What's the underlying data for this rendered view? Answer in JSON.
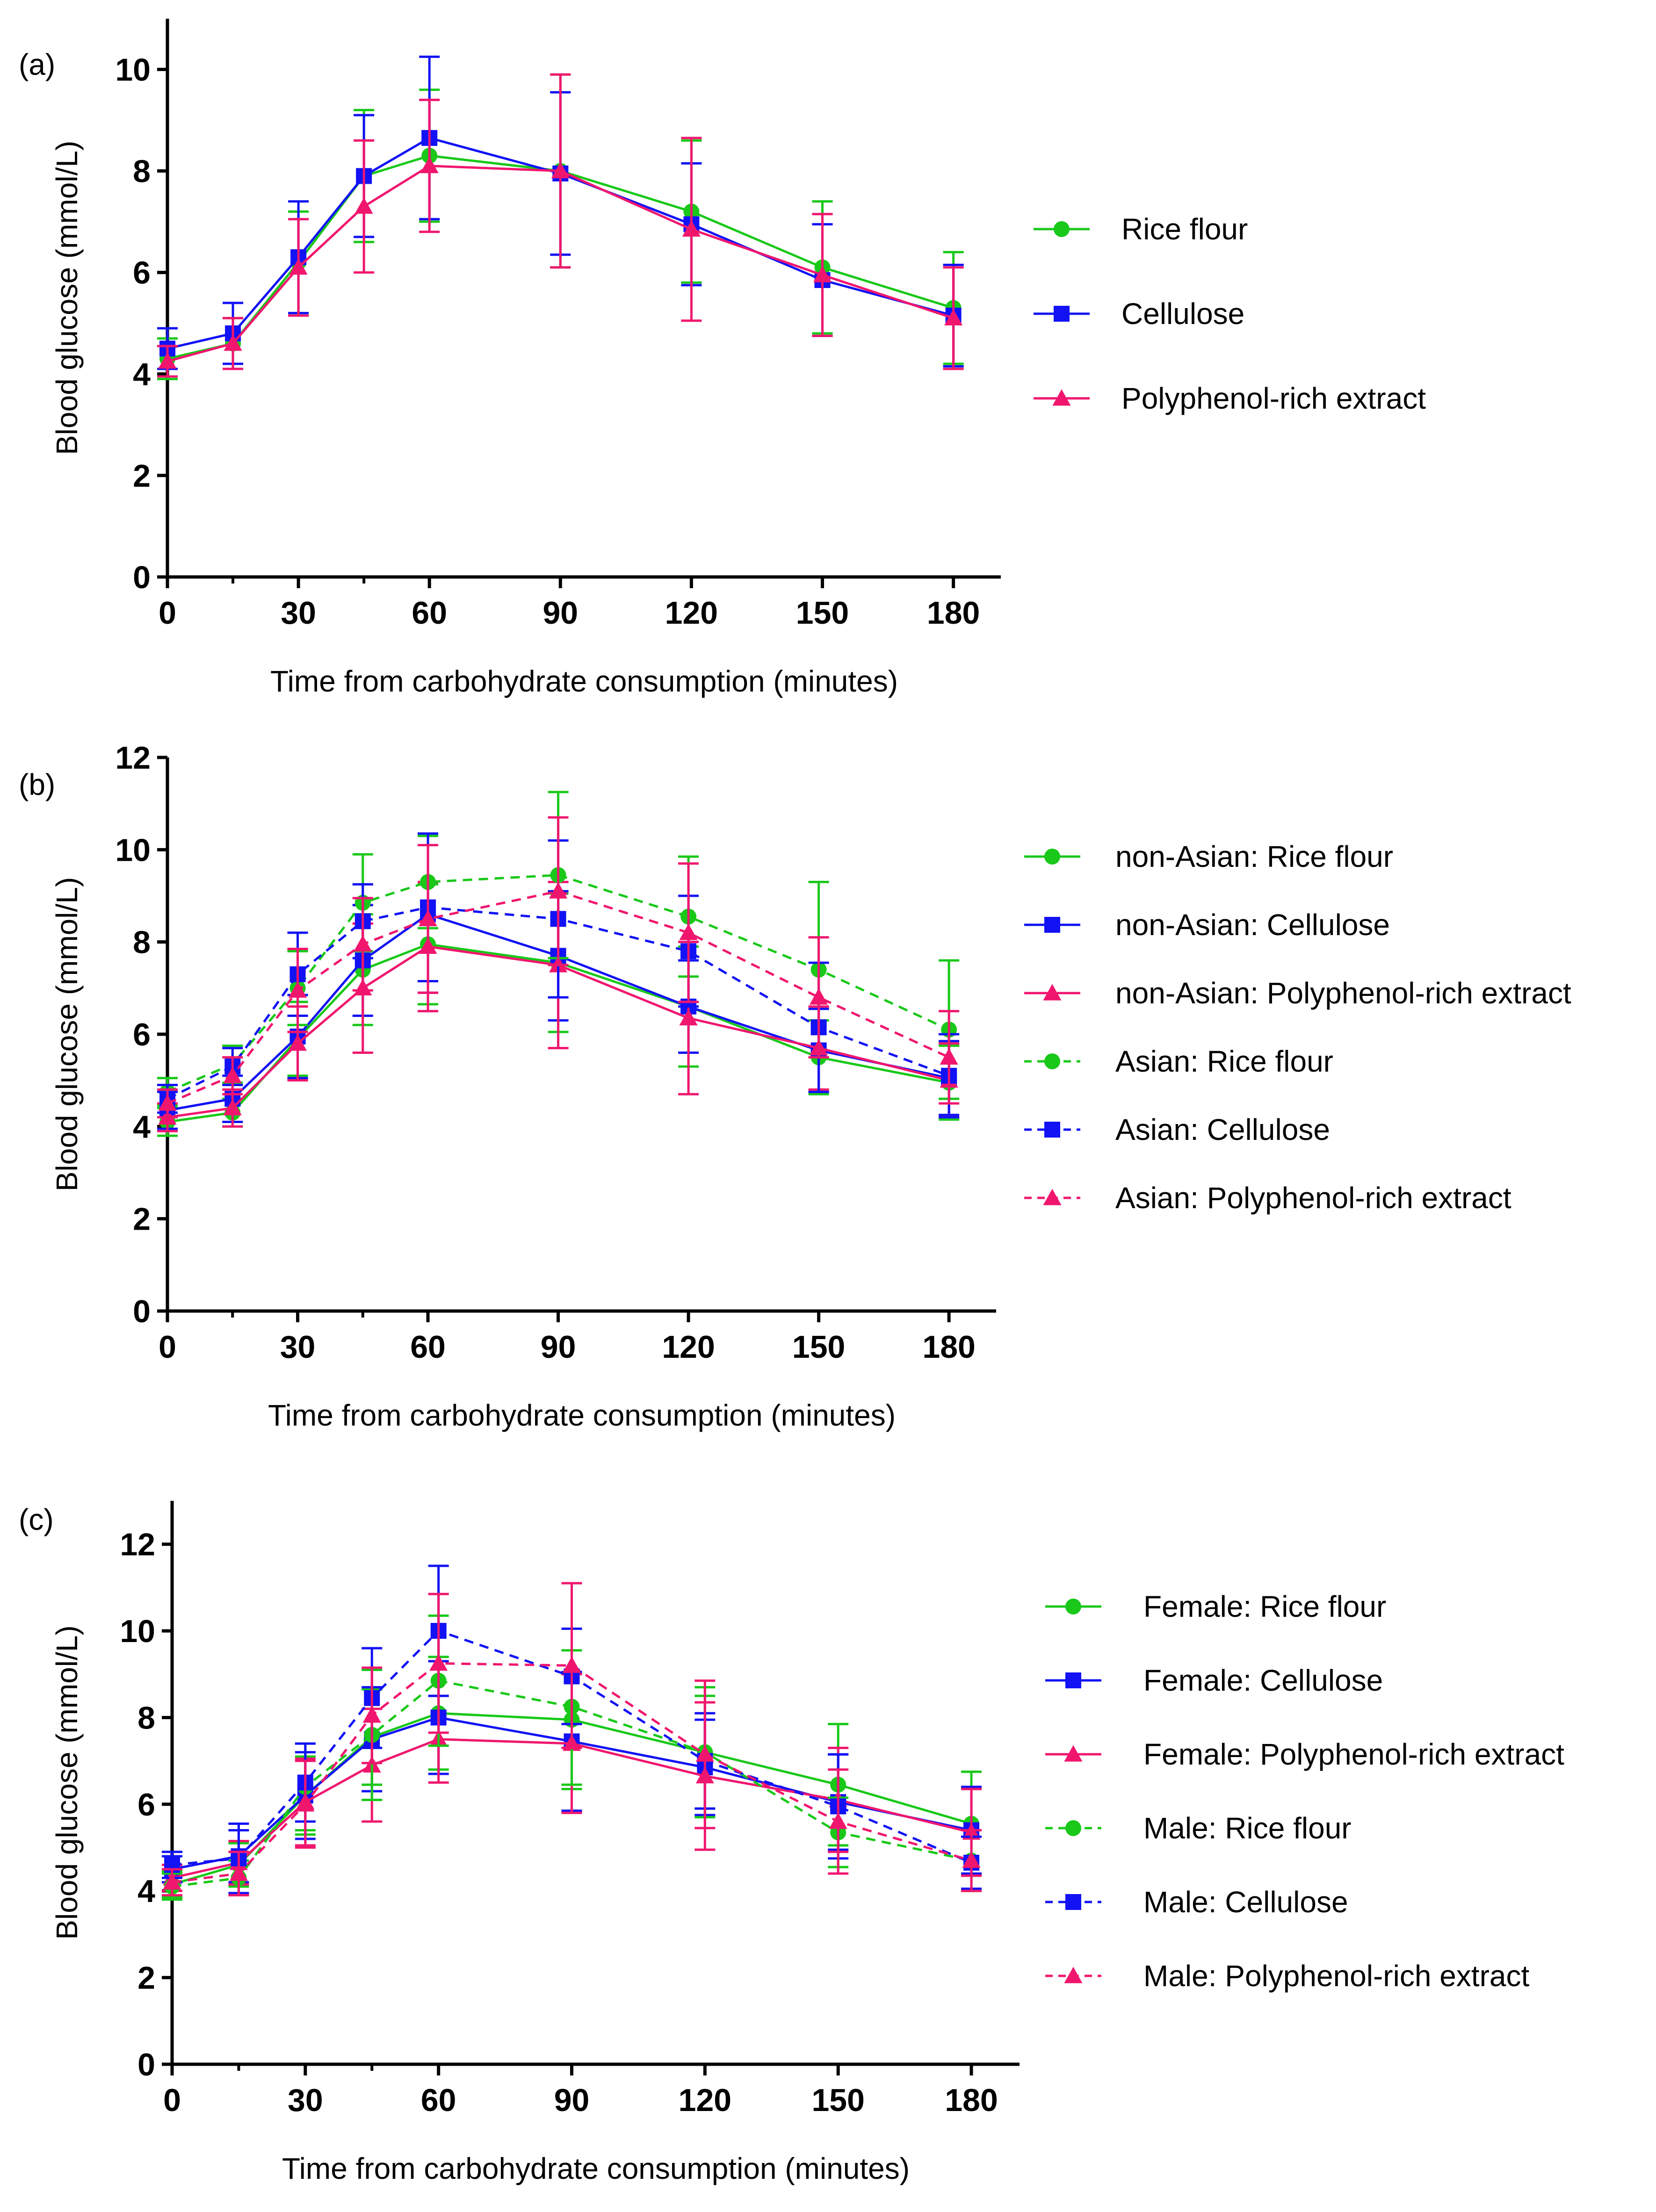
{
  "chart_data": [
    {
      "type": "line",
      "panel_label": "(a)",
      "xlabel": "Time from carbohydrate consumption (minutes)",
      "ylabel": "Blood glucose (mmol/L)",
      "x": [
        0,
        15,
        30,
        45,
        60,
        90,
        120,
        150,
        180
      ],
      "x_ticks": [
        0,
        30,
        60,
        90,
        120,
        150,
        180
      ],
      "xlim": [
        0,
        190
      ],
      "ylim": [
        0,
        11
      ],
      "y_ticks": [
        0,
        2,
        4,
        6,
        8,
        10
      ],
      "legend_position": "right",
      "series": [
        {
          "name": "Rice flour",
          "color": "#19c819",
          "marker": "circle",
          "dash": "solid",
          "values": [
            4.3,
            4.6,
            6.2,
            7.9,
            8.3,
            8.0,
            7.2,
            6.1,
            5.3
          ],
          "errors": [
            0.4,
            0.5,
            1.0,
            1.3,
            1.3,
            1.9,
            1.4,
            1.3,
            1.1
          ]
        },
        {
          "name": "Cellulose",
          "color": "#1212f5",
          "marker": "square",
          "dash": "solid",
          "values": [
            4.5,
            4.8,
            6.3,
            7.9,
            8.65,
            7.95,
            6.95,
            5.85,
            5.15
          ],
          "errors": [
            0.4,
            0.6,
            1.1,
            1.2,
            1.6,
            1.6,
            1.2,
            1.1,
            1.0
          ]
        },
        {
          "name": "Polyphenol-rich extract",
          "color": "#f0166e",
          "marker": "triangle",
          "dash": "solid",
          "values": [
            4.25,
            4.6,
            6.1,
            7.3,
            8.1,
            8.0,
            6.85,
            5.95,
            5.1
          ],
          "errors": [
            0.3,
            0.5,
            0.95,
            1.3,
            1.3,
            1.9,
            1.8,
            1.2,
            1.0
          ]
        }
      ]
    },
    {
      "type": "line",
      "panel_label": "(b)",
      "xlabel": "Time from carbohydrate consumption (minutes)",
      "ylabel": "Blood glucose (mmol/L)",
      "x": [
        0,
        15,
        30,
        45,
        60,
        90,
        120,
        150,
        180
      ],
      "x_ticks": [
        0,
        30,
        60,
        90,
        120,
        150,
        180
      ],
      "xlim": [
        0,
        190
      ],
      "ylim": [
        0,
        12
      ],
      "y_ticks": [
        0,
        2,
        4,
        6,
        8,
        10,
        12
      ],
      "legend_position": "right",
      "series": [
        {
          "name": "non-Asian: Rice flour",
          "color": "#19c819",
          "marker": "circle",
          "dash": "solid",
          "values": [
            4.1,
            4.3,
            5.9,
            7.4,
            7.95,
            7.55,
            6.6,
            5.5,
            4.95
          ],
          "errors": [
            0.3,
            0.3,
            0.8,
            1.2,
            1.3,
            1.5,
            1.3,
            0.8,
            0.8
          ]
        },
        {
          "name": "non-Asian: Cellulose",
          "color": "#1212f5",
          "marker": "square",
          "dash": "solid",
          "values": [
            4.35,
            4.6,
            5.95,
            7.6,
            8.6,
            7.7,
            6.6,
            5.65,
            5.05
          ],
          "errors": [
            0.4,
            0.5,
            0.9,
            1.2,
            1.7,
            1.4,
            1.0,
            0.9,
            0.8
          ]
        },
        {
          "name": "non-Asian: Polyphenol-rich extract",
          "color": "#f0166e",
          "marker": "triangle",
          "dash": "solid",
          "values": [
            4.2,
            4.4,
            5.8,
            7.0,
            7.9,
            7.5,
            6.35,
            5.7,
            5.0
          ],
          "errors": [
            0.3,
            0.4,
            0.8,
            1.4,
            1.4,
            1.8,
            1.65,
            0.9,
            0.8
          ]
        },
        {
          "name": "Asian: Rice flour",
          "color": "#19c819",
          "marker": "circle",
          "dash": "dashed",
          "values": [
            4.75,
            5.35,
            7.0,
            8.85,
            9.3,
            9.45,
            8.55,
            7.4,
            6.1
          ],
          "errors": [
            0.3,
            0.4,
            0.8,
            1.05,
            1.0,
            1.8,
            1.3,
            1.9,
            1.5
          ]
        },
        {
          "name": "Asian: Cellulose",
          "color": "#1212f5",
          "marker": "square",
          "dash": "dashed",
          "values": [
            4.6,
            5.3,
            7.3,
            8.45,
            8.75,
            8.5,
            7.8,
            6.15,
            5.1
          ],
          "errors": [
            0.3,
            0.4,
            0.9,
            0.8,
            1.6,
            1.7,
            1.2,
            1.4,
            0.9
          ]
        },
        {
          "name": "Asian: Polyphenol-rich extract",
          "color": "#f0166e",
          "marker": "triangle",
          "dash": "dashed",
          "values": [
            4.5,
            5.1,
            6.95,
            7.95,
            8.5,
            9.1,
            8.2,
            6.8,
            5.5
          ],
          "errors": [
            0.3,
            0.4,
            0.9,
            1.0,
            1.6,
            1.6,
            1.5,
            1.3,
            1.0
          ]
        }
      ]
    },
    {
      "type": "line",
      "panel_label": "(c)",
      "xlabel": "Time from carbohydrate consumption (minutes)",
      "ylabel": "Blood glucose (mmol/L)",
      "x": [
        0,
        15,
        30,
        45,
        60,
        90,
        120,
        150,
        180
      ],
      "x_ticks": [
        0,
        30,
        60,
        90,
        120,
        150,
        180
      ],
      "xlim": [
        0,
        190
      ],
      "ylim": [
        0,
        13
      ],
      "y_ticks": [
        0,
        2,
        4,
        6,
        8,
        10,
        12
      ],
      "legend_position": "right",
      "series": [
        {
          "name": "Female: Rice flour",
          "color": "#19c819",
          "marker": "circle",
          "dash": "solid",
          "values": [
            4.15,
            4.6,
            6.2,
            7.55,
            8.1,
            7.95,
            7.2,
            6.45,
            5.55
          ],
          "errors": [
            0.3,
            0.5,
            0.9,
            1.1,
            1.3,
            1.6,
            1.3,
            1.4,
            1.2
          ]
        },
        {
          "name": "Female: Cellulose",
          "color": "#1212f5",
          "marker": "square",
          "dash": "solid",
          "values": [
            4.5,
            4.8,
            6.2,
            7.5,
            8.0,
            7.45,
            6.85,
            6.05,
            5.4
          ],
          "errors": [
            0.3,
            0.6,
            1.0,
            1.2,
            1.3,
            1.6,
            1.1,
            1.1,
            1.0
          ]
        },
        {
          "name": "Female: Polyphenol-rich extract",
          "color": "#f0166e",
          "marker": "triangle",
          "dash": "solid",
          "values": [
            4.3,
            4.65,
            6.05,
            6.9,
            7.5,
            7.4,
            6.65,
            6.1,
            5.35
          ],
          "errors": [
            0.3,
            0.5,
            1.0,
            1.3,
            1.0,
            1.6,
            1.7,
            1.2,
            1.0
          ]
        },
        {
          "name": "Male: Rice flour",
          "color": "#19c819",
          "marker": "circle",
          "dash": "dashed",
          "values": [
            4.1,
            4.3,
            6.4,
            7.6,
            8.85,
            8.25,
            7.2,
            5.35,
            4.7
          ],
          "errors": [
            0.3,
            0.4,
            1.0,
            1.5,
            1.5,
            1.8,
            1.5,
            0.8,
            0.7
          ]
        },
        {
          "name": "Male: Cellulose",
          "color": "#1212f5",
          "marker": "square",
          "dash": "dashed",
          "values": [
            4.6,
            4.75,
            6.5,
            8.45,
            10.0,
            8.95,
            7.0,
            5.95,
            4.65
          ],
          "errors": [
            0.3,
            0.8,
            0.9,
            1.15,
            1.5,
            1.1,
            1.1,
            1.2,
            0.6
          ]
        },
        {
          "name": "Male: Polyphenol-rich extract",
          "color": "#f0166e",
          "marker": "triangle",
          "dash": "dashed",
          "values": [
            4.2,
            4.4,
            6.0,
            8.05,
            9.25,
            9.2,
            7.15,
            5.6,
            4.7
          ],
          "errors": [
            0.3,
            0.5,
            1.0,
            1.1,
            1.6,
            1.9,
            1.7,
            1.2,
            0.7
          ]
        }
      ]
    }
  ]
}
